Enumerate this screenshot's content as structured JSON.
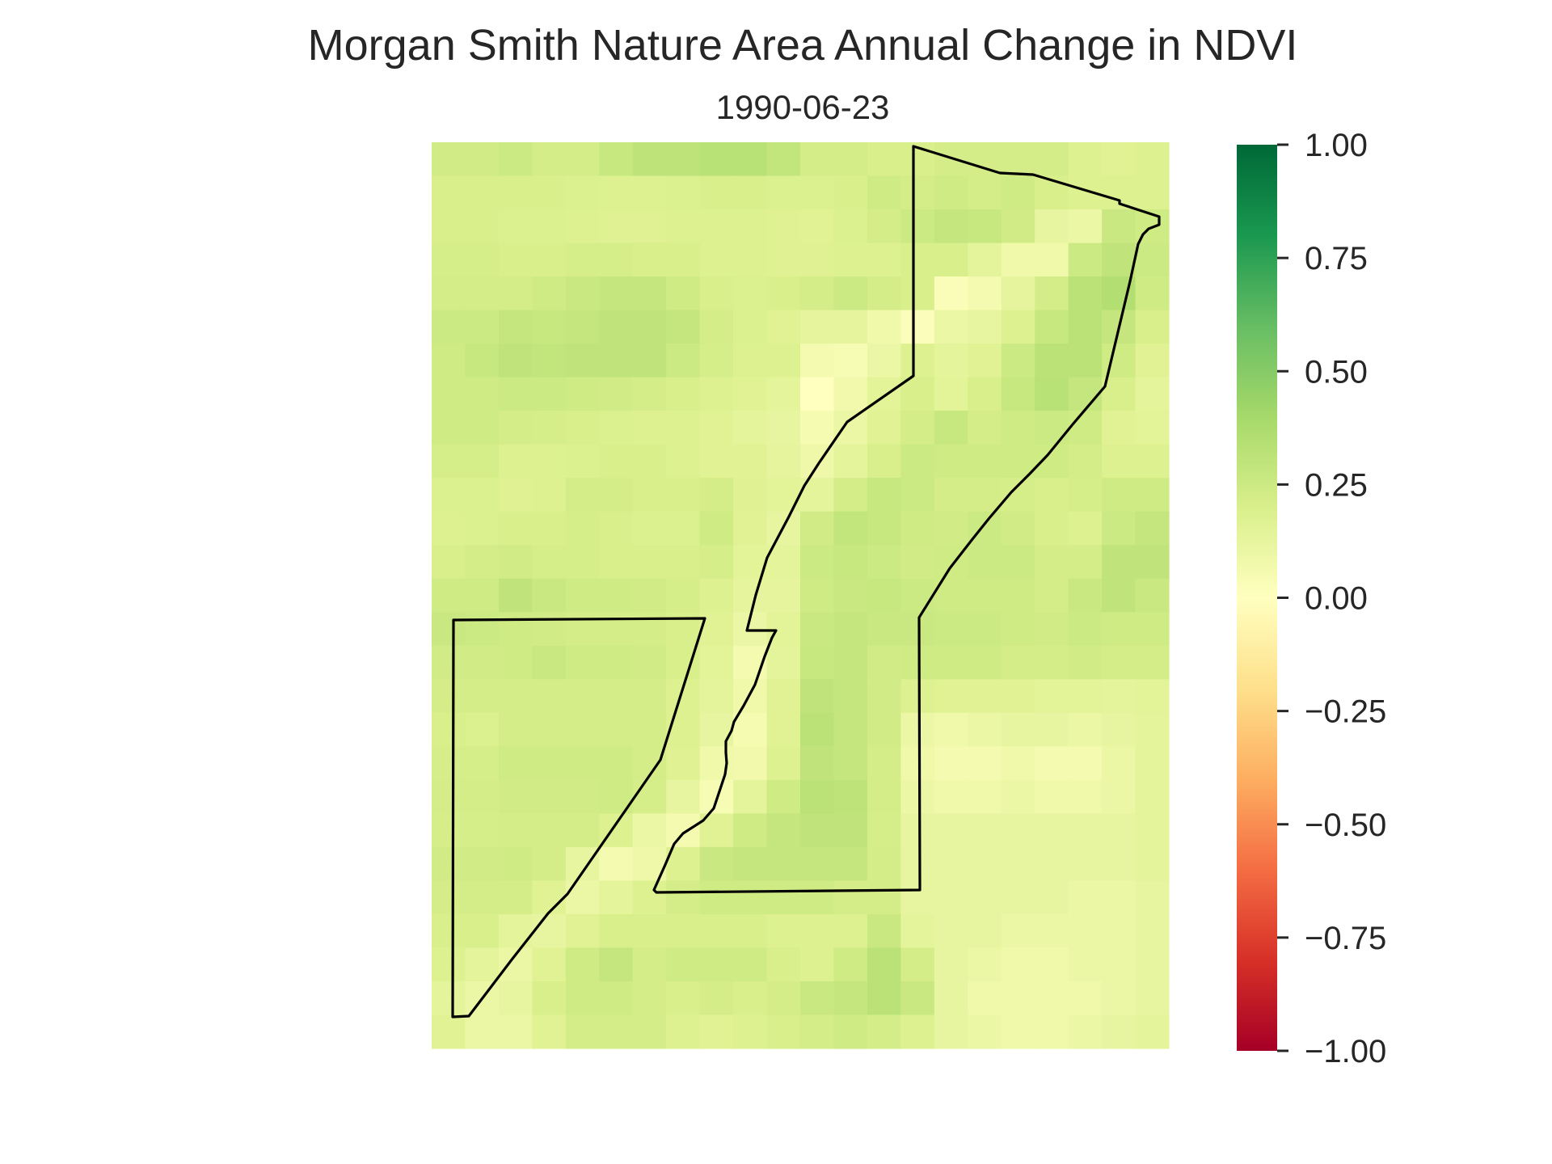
{
  "chart_data": {
    "type": "heatmap",
    "title": "Morgan Smith Nature Area Annual Change in NDVI",
    "subtitle": "1990-06-23",
    "xlabel": "",
    "ylabel": "",
    "grid": false,
    "colormap": "RdYlGn",
    "colorbar": {
      "range": [
        -1.0,
        1.0
      ],
      "ticks": [
        "1.00",
        "0.75",
        "0.50",
        "0.25",
        "0.00",
        "−0.25",
        "−0.50",
        "−0.75",
        "−1.00"
      ],
      "tick_values": [
        1.0,
        0.75,
        0.5,
        0.25,
        0.0,
        -0.25,
        -0.5,
        -0.75,
        -1.0
      ],
      "stops": [
        "#a50026",
        "#d73027",
        "#f46d43",
        "#fdae61",
        "#fee08b",
        "#ffffbf",
        "#d9ef8b",
        "#a6d96a",
        "#66bd63",
        "#1a9850",
        "#006837"
      ]
    },
    "rows": 27,
    "cols": 22,
    "values": [
      [
        0.23,
        0.23,
        0.25,
        0.22,
        0.22,
        0.27,
        0.31,
        0.31,
        0.33,
        0.33,
        0.29,
        0.22,
        0.22,
        0.2,
        0.2,
        0.22,
        0.22,
        0.22,
        0.22,
        0.18,
        0.16,
        0.18
      ],
      [
        0.2,
        0.2,
        0.2,
        0.2,
        0.19,
        0.18,
        0.18,
        0.19,
        0.2,
        0.2,
        0.19,
        0.19,
        0.2,
        0.24,
        0.22,
        0.24,
        0.22,
        0.24,
        0.2,
        0.18,
        0.18,
        0.18
      ],
      [
        0.2,
        0.2,
        0.19,
        0.19,
        0.18,
        0.17,
        0.17,
        0.18,
        0.18,
        0.18,
        0.17,
        0.16,
        0.19,
        0.22,
        0.25,
        0.28,
        0.27,
        0.23,
        0.12,
        0.1,
        0.26,
        0.24
      ],
      [
        0.21,
        0.21,
        0.2,
        0.2,
        0.21,
        0.21,
        0.2,
        0.2,
        0.18,
        0.18,
        0.17,
        0.17,
        0.18,
        0.18,
        0.2,
        0.2,
        0.14,
        0.08,
        0.08,
        0.25,
        0.3,
        0.25
      ],
      [
        0.22,
        0.22,
        0.22,
        0.24,
        0.26,
        0.28,
        0.28,
        0.24,
        0.2,
        0.19,
        0.2,
        0.22,
        0.25,
        0.22,
        0.2,
        0.03,
        0.06,
        0.13,
        0.22,
        0.32,
        0.35,
        0.24
      ],
      [
        0.25,
        0.25,
        0.28,
        0.27,
        0.28,
        0.3,
        0.3,
        0.28,
        0.22,
        0.19,
        0.16,
        0.13,
        0.13,
        0.08,
        0.02,
        0.1,
        0.12,
        0.18,
        0.27,
        0.32,
        0.28,
        0.2
      ],
      [
        0.24,
        0.27,
        0.3,
        0.29,
        0.3,
        0.3,
        0.3,
        0.25,
        0.21,
        0.18,
        0.18,
        0.06,
        0.04,
        0.1,
        0.18,
        0.14,
        0.16,
        0.25,
        0.32,
        0.32,
        0.24,
        0.16
      ],
      [
        0.24,
        0.24,
        0.25,
        0.25,
        0.24,
        0.23,
        0.22,
        0.2,
        0.18,
        0.16,
        0.14,
        0.0,
        0.07,
        0.15,
        0.2,
        0.15,
        0.2,
        0.27,
        0.33,
        0.28,
        0.2,
        0.14
      ],
      [
        0.24,
        0.24,
        0.22,
        0.21,
        0.2,
        0.19,
        0.18,
        0.18,
        0.16,
        0.14,
        0.12,
        0.05,
        0.1,
        0.16,
        0.22,
        0.27,
        0.22,
        0.24,
        0.25,
        0.24,
        0.16,
        0.15
      ],
      [
        0.21,
        0.21,
        0.18,
        0.18,
        0.19,
        0.2,
        0.2,
        0.18,
        0.16,
        0.16,
        0.13,
        0.09,
        0.14,
        0.2,
        0.25,
        0.24,
        0.24,
        0.24,
        0.24,
        0.22,
        0.18,
        0.18
      ],
      [
        0.19,
        0.19,
        0.17,
        0.18,
        0.22,
        0.22,
        0.2,
        0.2,
        0.22,
        0.17,
        0.15,
        0.14,
        0.22,
        0.27,
        0.25,
        0.22,
        0.22,
        0.21,
        0.2,
        0.21,
        0.24,
        0.24
      ],
      [
        0.18,
        0.19,
        0.2,
        0.2,
        0.21,
        0.2,
        0.19,
        0.19,
        0.24,
        0.16,
        0.12,
        0.23,
        0.29,
        0.27,
        0.24,
        0.23,
        0.25,
        0.23,
        0.2,
        0.18,
        0.25,
        0.28
      ],
      [
        0.2,
        0.22,
        0.23,
        0.21,
        0.21,
        0.2,
        0.2,
        0.2,
        0.21,
        0.15,
        0.14,
        0.25,
        0.27,
        0.25,
        0.23,
        0.24,
        0.25,
        0.25,
        0.22,
        0.22,
        0.3,
        0.3
      ],
      [
        0.24,
        0.24,
        0.3,
        0.26,
        0.24,
        0.24,
        0.23,
        0.21,
        0.18,
        0.13,
        0.13,
        0.24,
        0.26,
        0.27,
        0.25,
        0.24,
        0.24,
        0.24,
        0.22,
        0.26,
        0.3,
        0.26
      ],
      [
        0.26,
        0.25,
        0.24,
        0.23,
        0.22,
        0.22,
        0.22,
        0.2,
        0.16,
        0.1,
        0.15,
        0.26,
        0.28,
        0.26,
        0.26,
        0.25,
        0.25,
        0.24,
        0.23,
        0.25,
        0.24,
        0.24
      ],
      [
        0.23,
        0.23,
        0.24,
        0.26,
        0.24,
        0.24,
        0.23,
        0.2,
        0.15,
        0.06,
        0.14,
        0.27,
        0.28,
        0.23,
        0.24,
        0.24,
        0.24,
        0.22,
        0.22,
        0.23,
        0.22,
        0.22
      ],
      [
        0.22,
        0.22,
        0.22,
        0.22,
        0.22,
        0.22,
        0.22,
        0.18,
        0.14,
        0.08,
        0.16,
        0.3,
        0.28,
        0.23,
        0.18,
        0.16,
        0.16,
        0.16,
        0.15,
        0.15,
        0.14,
        0.15
      ],
      [
        0.2,
        0.19,
        0.22,
        0.22,
        0.22,
        0.22,
        0.22,
        0.18,
        0.12,
        0.05,
        0.16,
        0.32,
        0.28,
        0.23,
        0.1,
        0.08,
        0.1,
        0.12,
        0.12,
        0.1,
        0.12,
        0.14
      ],
      [
        0.21,
        0.21,
        0.24,
        0.24,
        0.24,
        0.24,
        0.22,
        0.17,
        0.08,
        0.07,
        0.18,
        0.3,
        0.28,
        0.22,
        0.08,
        0.06,
        0.06,
        0.08,
        0.06,
        0.06,
        0.1,
        0.14
      ],
      [
        0.22,
        0.22,
        0.23,
        0.23,
        0.23,
        0.24,
        0.21,
        0.12,
        0.04,
        0.14,
        0.24,
        0.32,
        0.31,
        0.22,
        0.1,
        0.08,
        0.08,
        0.1,
        0.08,
        0.08,
        0.1,
        0.14
      ],
      [
        0.21,
        0.21,
        0.22,
        0.22,
        0.22,
        0.18,
        0.1,
        0.06,
        0.16,
        0.24,
        0.28,
        0.3,
        0.3,
        0.21,
        0.12,
        0.12,
        0.12,
        0.12,
        0.12,
        0.12,
        0.12,
        0.14
      ],
      [
        0.23,
        0.23,
        0.24,
        0.22,
        0.12,
        0.06,
        0.09,
        0.18,
        0.26,
        0.28,
        0.28,
        0.28,
        0.28,
        0.22,
        0.12,
        0.12,
        0.12,
        0.12,
        0.12,
        0.12,
        0.12,
        0.14
      ],
      [
        0.22,
        0.22,
        0.22,
        0.16,
        0.1,
        0.14,
        0.18,
        0.22,
        0.24,
        0.24,
        0.24,
        0.24,
        0.22,
        0.22,
        0.12,
        0.12,
        0.12,
        0.12,
        0.12,
        0.1,
        0.1,
        0.12
      ],
      [
        0.2,
        0.2,
        0.14,
        0.12,
        0.16,
        0.2,
        0.2,
        0.2,
        0.2,
        0.2,
        0.18,
        0.18,
        0.18,
        0.26,
        0.14,
        0.12,
        0.12,
        0.1,
        0.1,
        0.1,
        0.1,
        0.12
      ],
      [
        0.18,
        0.14,
        0.1,
        0.16,
        0.24,
        0.28,
        0.22,
        0.24,
        0.24,
        0.24,
        0.2,
        0.18,
        0.24,
        0.32,
        0.22,
        0.12,
        0.1,
        0.08,
        0.08,
        0.1,
        0.1,
        0.12
      ],
      [
        0.14,
        0.1,
        0.12,
        0.2,
        0.24,
        0.24,
        0.22,
        0.2,
        0.22,
        0.2,
        0.22,
        0.26,
        0.28,
        0.32,
        0.26,
        0.12,
        0.08,
        0.08,
        0.08,
        0.08,
        0.1,
        0.12
      ],
      [
        0.16,
        0.1,
        0.1,
        0.16,
        0.22,
        0.22,
        0.22,
        0.18,
        0.16,
        0.18,
        0.2,
        0.22,
        0.24,
        0.22,
        0.18,
        0.12,
        0.1,
        0.08,
        0.08,
        0.1,
        0.12,
        0.14
      ]
    ],
    "boundary_color": "#000000"
  }
}
